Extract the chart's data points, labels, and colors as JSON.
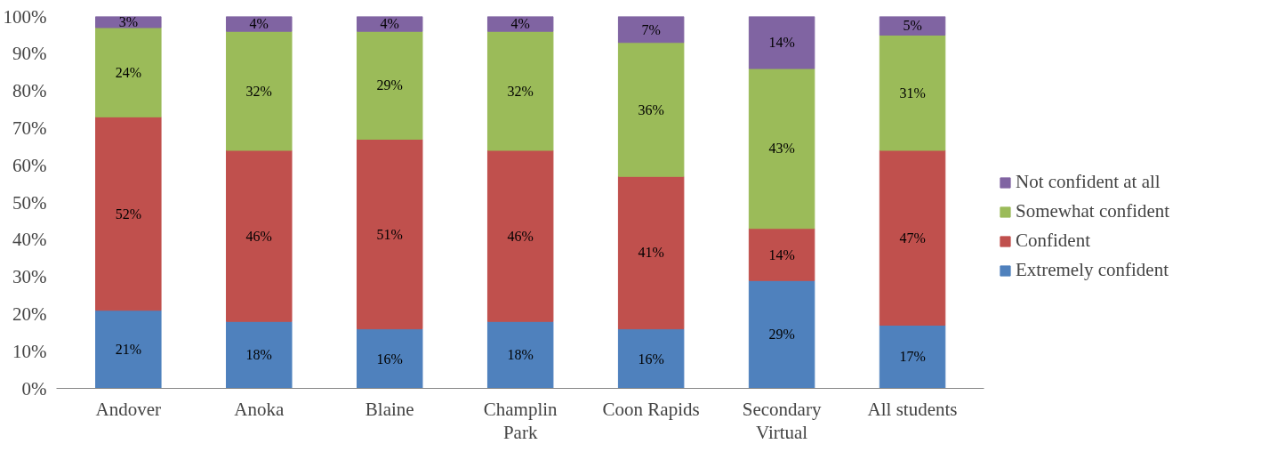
{
  "chart_data": {
    "type": "bar",
    "stacked": true,
    "grid": false,
    "legend": "right",
    "categories": [
      "Andover",
      "Anoka",
      "Blaine",
      "Champlin\nPark",
      "Coon Rapids",
      "Secondary\nVirtual",
      "All students"
    ],
    "ylim": [
      0,
      100
    ],
    "yticks": [
      {
        "value": 0,
        "label": "0%"
      },
      {
        "value": 10,
        "label": "10%"
      },
      {
        "value": 20,
        "label": "20%"
      },
      {
        "value": 30,
        "label": "30%"
      },
      {
        "value": 40,
        "label": "40%"
      },
      {
        "value": 50,
        "label": "50%"
      },
      {
        "value": 60,
        "label": "60%"
      },
      {
        "value": 70,
        "label": "70%"
      },
      {
        "value": 80,
        "label": "80%"
      },
      {
        "value": 90,
        "label": "90%"
      },
      {
        "value": 100,
        "label": "100%"
      }
    ],
    "series": [
      {
        "name": "Extremely confident",
        "color": "#4f81bd",
        "values": [
          21,
          18,
          16,
          18,
          16,
          29,
          17
        ],
        "value_labels": [
          "21%",
          "18%",
          "16%",
          "18%",
          "16%",
          "29%",
          "17%"
        ]
      },
      {
        "name": "Confident",
        "color": "#c0504d",
        "values": [
          52,
          46,
          51,
          46,
          41,
          14,
          47
        ],
        "value_labels": [
          "52%",
          "46%",
          "51%",
          "46%",
          "41%",
          "14%",
          "47%"
        ]
      },
      {
        "name": "Somewhat confident",
        "color": "#9bbb59",
        "values": [
          24,
          32,
          29,
          32,
          36,
          43,
          31
        ],
        "value_labels": [
          "24%",
          "32%",
          "29%",
          "32%",
          "36%",
          "43%",
          "31%"
        ]
      },
      {
        "name": "Not confident at all",
        "color": "#8064a2",
        "values": [
          3,
          4,
          4,
          4,
          7,
          14,
          5
        ],
        "value_labels": [
          "3%",
          "4%",
          "4%",
          "4%",
          "7%",
          "14%",
          "5%"
        ]
      }
    ]
  }
}
